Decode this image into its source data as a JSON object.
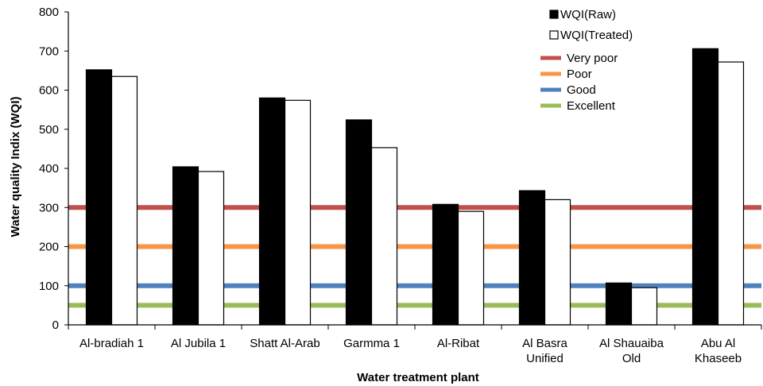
{
  "chart_data": {
    "type": "bar",
    "xlabel": "Water treatment plant",
    "ylabel": "Water quality Indix (WQI)",
    "ylim": [
      0,
      800
    ],
    "yticks": [
      0,
      100,
      200,
      300,
      400,
      500,
      600,
      700,
      800
    ],
    "categories": [
      [
        "Al-bradiah 1"
      ],
      [
        "Al Jubila 1"
      ],
      [
        "Shatt Al-Arab"
      ],
      [
        "Garmma 1"
      ],
      [
        "Al-Ribat"
      ],
      [
        "Al Basra",
        "Unified"
      ],
      [
        "Al Shauaiba",
        "Old"
      ],
      [
        "Abu Al",
        "Khaseeb"
      ]
    ],
    "series": [
      {
        "name": "WQI(Raw)",
        "fill": "#000000",
        "values": [
          652,
          404,
          580,
          524,
          308,
          343,
          107,
          706
        ]
      },
      {
        "name": "WQI(Treated)",
        "fill": "#ffffff",
        "values": [
          635,
          392,
          574,
          453,
          290,
          320,
          95,
          672
        ]
      }
    ],
    "reference_lines": [
      {
        "name": "Very poor",
        "value": 300,
        "color": "#c0504d"
      },
      {
        "name": "Poor",
        "value": 200,
        "color": "#f79646"
      },
      {
        "name": "Good",
        "value": 100,
        "color": "#4f81bd"
      },
      {
        "name": "Excellent",
        "value": 50,
        "color": "#9bbb59"
      }
    ],
    "legend_position": "top-right",
    "grid": false
  }
}
